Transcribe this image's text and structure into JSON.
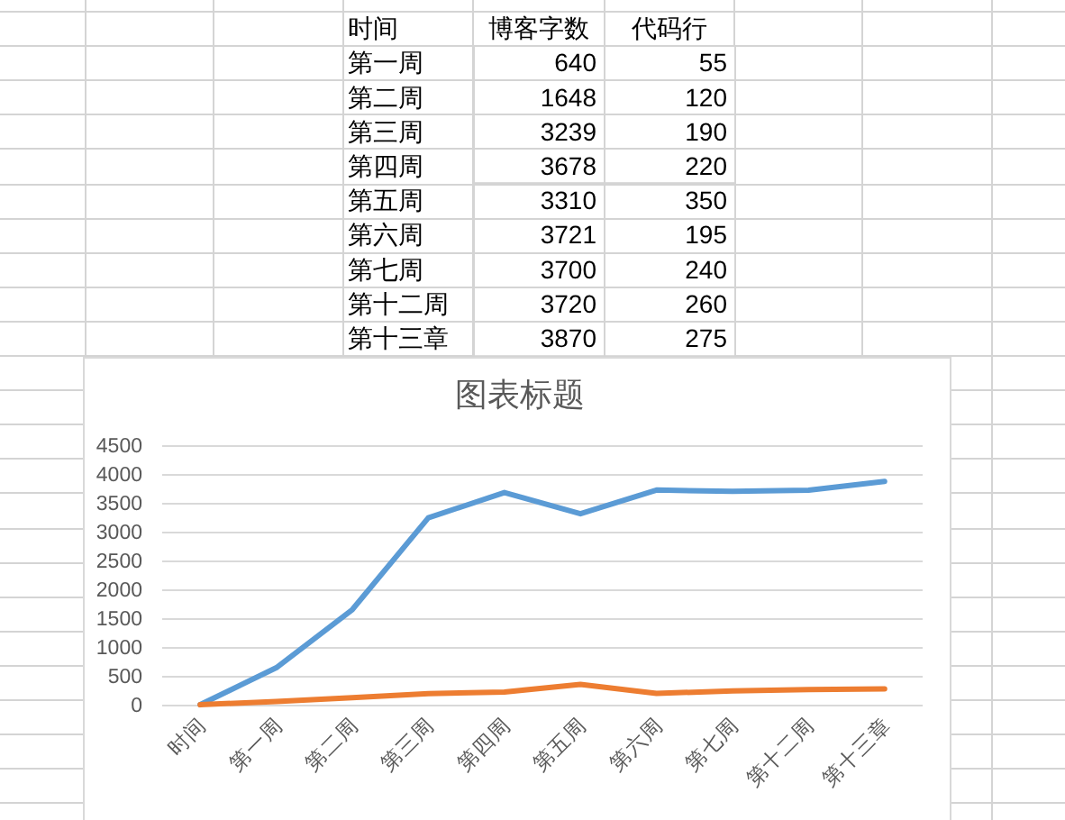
{
  "chart_data": [
    {
      "type": "heatmap",
      "ylabel": "时间",
      "categories": [
        "博客字数",
        "代码行"
      ],
      "y_categories": [
        "第一周",
        "第二周",
        "第三周",
        "第四周",
        "第五周",
        "第六周",
        "第七周",
        "第十二周",
        "第十三章"
      ],
      "cells": [
        [
          640,
          55
        ],
        [
          1648,
          120
        ],
        [
          3239,
          190
        ],
        [
          3678,
          220
        ],
        [
          3310,
          350
        ],
        [
          3721,
          195
        ],
        [
          3700,
          240
        ],
        [
          3720,
          260
        ],
        [
          3870,
          275
        ]
      ],
      "data_labels": true
    },
    {
      "type": "line",
      "title": "图表标题",
      "categories": [
        "时间",
        "第一周",
        "第二周",
        "第三周",
        "第四周",
        "第五周",
        "第六周",
        "第七周",
        "第十二周",
        "第十三章"
      ],
      "series": [
        {
          "color": "#5b9bd5",
          "values": [
            0,
            640,
            1648,
            3239,
            3678,
            3310,
            3721,
            3700,
            3720,
            3870
          ]
        },
        {
          "color": "#ed7d31",
          "values": [
            0,
            55,
            120,
            190,
            220,
            350,
            195,
            240,
            260,
            275
          ]
        }
      ],
      "ylim": [
        0,
        4500
      ],
      "yticks": [
        0,
        500,
        1000,
        1500,
        2000,
        2500,
        3000,
        3500,
        4000,
        4500
      ],
      "grid": "y",
      "marker": "none",
      "line_style": "solid"
    }
  ]
}
